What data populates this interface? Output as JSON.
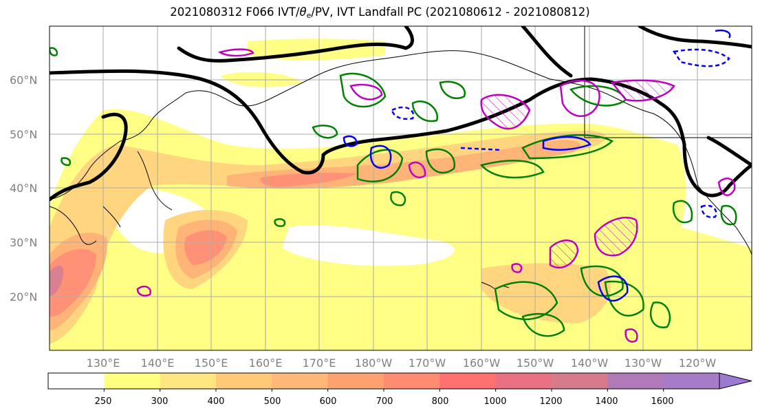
{
  "title": {
    "prefix": "2021080312 F066 IVT/",
    "theta": "θ",
    "theta_sub": "e",
    "suffix": "/PV, IVT Landfall PC (2021080612 - 2021080812)"
  },
  "lat_labels": [
    "60°N",
    "50°N",
    "40°N",
    "30°N",
    "20°N"
  ],
  "lon_labels": [
    "130°E",
    "140°E",
    "150°E",
    "160°E",
    "170°E",
    "180°W",
    "170°W",
    "160°W",
    "150°W",
    "140°W",
    "130°W",
    "120°W"
  ],
  "colorbar": {
    "levels": [
      "250",
      "300",
      "400",
      "500",
      "600",
      "700",
      "800",
      "1000",
      "1200",
      "1400",
      "1600"
    ],
    "colors": [
      "#ffffff",
      "#ffff80",
      "#ffe680",
      "#ffc978",
      "#ffb878",
      "#ffa070",
      "#ff8c70",
      "#ff7070",
      "#e87080",
      "#d77a8c",
      "#b07ab8",
      "#a67cc8",
      "#9c7ad2"
    ]
  },
  "contour_colors": {
    "fill": [
      "#ffff80",
      "#ffd37a",
      "#ffb070",
      "#ff8c70",
      "#e06a80"
    ],
    "pv_heavy": "#000000",
    "theta_e": "#008000",
    "cyclonic": "#0000ff",
    "anticyclonic": "#c000c0"
  }
}
